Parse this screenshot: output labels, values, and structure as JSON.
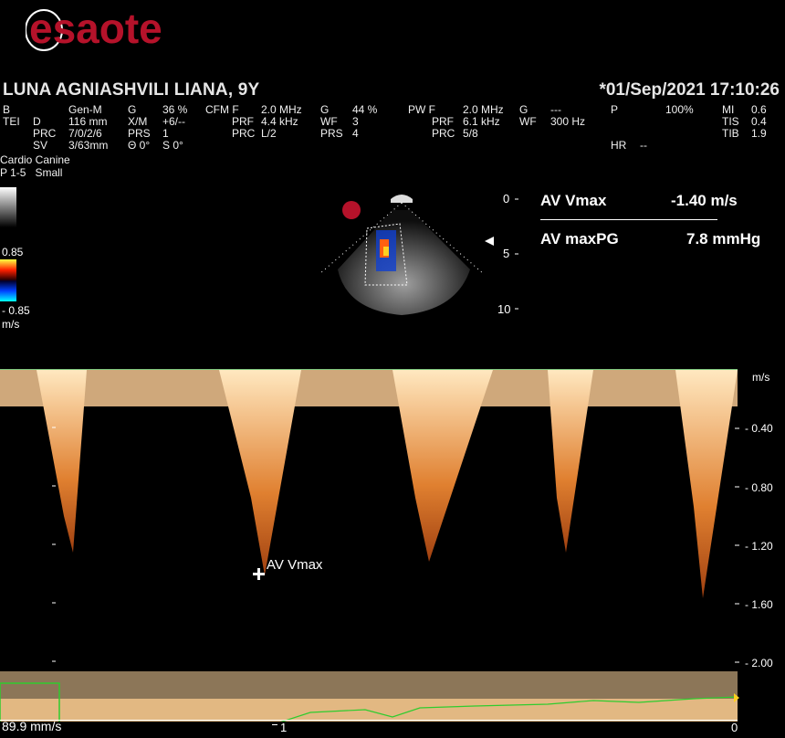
{
  "header": {
    "brand": "esaote",
    "patient": "LUNA AGNIASHVILI LIANA, 9Y",
    "datetime": "*01/Sep/2021 17:10:26"
  },
  "params": {
    "row1": [
      "B",
      "Gen-M",
      "G",
      "36 %",
      "CFM F",
      "2.0 MHz",
      "G",
      "44 %",
      "PW F",
      "2.0 MHz",
      "G",
      "---",
      "P",
      "100%",
      "MI",
      "0.6"
    ],
    "row2": [
      "TEI",
      "D",
      "116 mm",
      "X/M",
      "+6/--",
      "PRF",
      "4.4 kHz",
      "WF",
      "3",
      "PRF",
      "6.1 kHz",
      "WF",
      "300 Hz",
      "TIS",
      "0.4"
    ],
    "row3": [
      "PRC",
      "7/0/2/6",
      "PRS",
      "1",
      "PRC",
      "L/2",
      "PRS",
      "4",
      "PRC",
      "5/8",
      "TIB",
      "1.9"
    ],
    "row4": [
      "SV",
      "3/63mm",
      "Θ 0°",
      "S 0°",
      "HR",
      "--"
    ],
    "preset": "Cardio Canine",
    "probe": "P 1-5   Small"
  },
  "colorbar": {
    "top": "0.85",
    "bottom": "- 0.85",
    "unit": "m/s"
  },
  "depth": {
    "d0": "0",
    "d5": "5",
    "d10": "10"
  },
  "measurements": [
    {
      "label": "AV Vmax",
      "value": "-1.40 m/s"
    },
    {
      "label": "AV maxPG",
      "value": "7.8 mmHg"
    }
  ],
  "spectral": {
    "unit": "m/s",
    "ticks": [
      "- 0.40",
      "- 0.80",
      "- 1.20",
      "- 1.60",
      "- 2.00"
    ],
    "tick_values": [
      -0.4,
      -0.8,
      -1.2,
      -1.6,
      -2.0
    ],
    "time_labels": [
      "1",
      "0"
    ],
    "caliper_label": "AV Vmax",
    "scale_text": "89.9 mm/s"
  },
  "colors": {
    "doppler": "#ffb060",
    "ecg": "#2ecc2e",
    "brand": "#b5122a"
  }
}
